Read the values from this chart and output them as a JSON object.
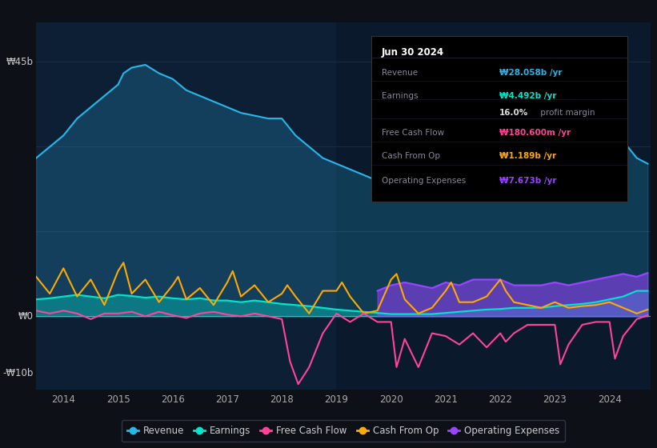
{
  "bg_color": "#0d1117",
  "plot_bg_color": "#0d1f35",
  "ylabel_top": "₩45b",
  "ylabel_zero": "₩0",
  "ylabel_bottom": "-₩10b",
  "xlim_start": 2013.5,
  "xlim_end": 2024.75,
  "ylim_min": -13,
  "ylim_max": 52,
  "xticks": [
    2014,
    2015,
    2016,
    2017,
    2018,
    2019,
    2020,
    2021,
    2022,
    2023,
    2024
  ],
  "colors": {
    "revenue": "#29b5e8",
    "earnings": "#00e5cc",
    "free_cash_flow": "#ff4499",
    "cash_from_op": "#ffaa00",
    "operating_expenses": "#9944ff"
  },
  "legend_labels": [
    "Revenue",
    "Earnings",
    "Free Cash Flow",
    "Cash From Op",
    "Operating Expenses"
  ],
  "revenue_x": [
    2013.5,
    2013.75,
    2014.0,
    2014.25,
    2014.5,
    2014.75,
    2015.0,
    2015.1,
    2015.25,
    2015.5,
    2015.75,
    2016.0,
    2016.25,
    2016.5,
    2016.75,
    2017.0,
    2017.25,
    2017.5,
    2017.75,
    2018.0,
    2018.25,
    2018.5,
    2018.75,
    2019.0,
    2019.25,
    2019.5,
    2019.75,
    2020.0,
    2020.25,
    2020.5,
    2020.75,
    2021.0,
    2021.25,
    2021.5,
    2021.75,
    2022.0,
    2022.25,
    2022.5,
    2022.75,
    2023.0,
    2023.25,
    2023.5,
    2023.75,
    2024.0,
    2024.1,
    2024.25,
    2024.5,
    2024.7
  ],
  "revenue_y": [
    28,
    30,
    32,
    35,
    37,
    39,
    41,
    43,
    44,
    44.5,
    43,
    42,
    40,
    39,
    38,
    37,
    36,
    35.5,
    35,
    35,
    32,
    30,
    28,
    27,
    26,
    25,
    24,
    24,
    24,
    23,
    22,
    22,
    22,
    23,
    23,
    22,
    23,
    24,
    25.5,
    27,
    28,
    30,
    32,
    36,
    35,
    31,
    28,
    27
  ],
  "earnings_x": [
    2013.5,
    2013.75,
    2014.0,
    2014.25,
    2014.5,
    2014.75,
    2015.0,
    2015.25,
    2015.5,
    2015.75,
    2016.0,
    2016.25,
    2016.5,
    2016.75,
    2017.0,
    2017.25,
    2017.5,
    2017.75,
    2018.0,
    2018.25,
    2018.5,
    2018.75,
    2019.0,
    2019.25,
    2019.5,
    2019.75,
    2020.0,
    2020.25,
    2020.5,
    2020.75,
    2021.0,
    2021.25,
    2021.5,
    2021.75,
    2022.0,
    2022.25,
    2022.5,
    2022.75,
    2023.0,
    2023.25,
    2023.5,
    2023.75,
    2024.0,
    2024.25,
    2024.5,
    2024.7
  ],
  "earnings_y": [
    3.0,
    3.2,
    3.5,
    3.8,
    3.5,
    3.2,
    3.8,
    3.6,
    3.3,
    3.5,
    3.2,
    3.0,
    3.2,
    2.8,
    2.8,
    2.5,
    2.8,
    2.5,
    2.2,
    2.0,
    1.8,
    1.5,
    1.2,
    1.0,
    0.8,
    0.6,
    0.4,
    0.4,
    0.4,
    0.4,
    0.6,
    0.8,
    1.0,
    1.2,
    1.3,
    1.5,
    1.5,
    1.5,
    1.8,
    2.0,
    2.2,
    2.5,
    3.0,
    3.5,
    4.5,
    4.5
  ],
  "cash_from_op_x": [
    2013.5,
    2013.75,
    2014.0,
    2014.25,
    2014.5,
    2014.75,
    2015.0,
    2015.1,
    2015.25,
    2015.5,
    2015.75,
    2016.0,
    2016.1,
    2016.25,
    2016.5,
    2016.75,
    2017.0,
    2017.1,
    2017.25,
    2017.5,
    2017.75,
    2018.0,
    2018.1,
    2018.25,
    2018.5,
    2018.75,
    2019.0,
    2019.1,
    2019.25,
    2019.5,
    2019.75,
    2020.0,
    2020.1,
    2020.25,
    2020.5,
    2020.75,
    2021.0,
    2021.1,
    2021.25,
    2021.5,
    2021.75,
    2022.0,
    2022.1,
    2022.25,
    2022.5,
    2022.75,
    2023.0,
    2023.25,
    2023.5,
    2023.75,
    2024.0,
    2024.25,
    2024.5,
    2024.7
  ],
  "cash_from_op_y": [
    7.0,
    4.0,
    8.5,
    3.5,
    6.5,
    2.0,
    8.0,
    9.5,
    4.0,
    6.5,
    2.5,
    5.5,
    7.0,
    3.0,
    5.0,
    2.0,
    6.0,
    8.0,
    3.5,
    5.5,
    2.5,
    4.0,
    5.5,
    3.5,
    0.5,
    4.5,
    4.5,
    6.0,
    3.5,
    0.5,
    1.0,
    6.5,
    7.5,
    3.0,
    0.5,
    1.5,
    4.5,
    6.0,
    2.5,
    2.5,
    3.5,
    6.5,
    4.5,
    2.5,
    2.0,
    1.5,
    2.5,
    1.5,
    1.8,
    2.0,
    2.5,
    1.5,
    0.5,
    1.189
  ],
  "free_cash_flow_x": [
    2013.5,
    2013.75,
    2014.0,
    2014.25,
    2014.5,
    2014.75,
    2015.0,
    2015.25,
    2015.5,
    2015.75,
    2016.0,
    2016.25,
    2016.5,
    2016.75,
    2017.0,
    2017.25,
    2017.5,
    2017.75,
    2018.0,
    2018.15,
    2018.3,
    2018.5,
    2018.75,
    2019.0,
    2019.25,
    2019.5,
    2019.75,
    2020.0,
    2020.1,
    2020.25,
    2020.5,
    2020.75,
    2021.0,
    2021.25,
    2021.5,
    2021.75,
    2022.0,
    2022.1,
    2022.25,
    2022.5,
    2022.75,
    2023.0,
    2023.1,
    2023.25,
    2023.5,
    2023.75,
    2024.0,
    2024.1,
    2024.25,
    2024.5,
    2024.7
  ],
  "free_cash_flow_y": [
    1.0,
    0.5,
    1.0,
    0.5,
    -0.5,
    0.5,
    0.5,
    0.8,
    0.0,
    0.8,
    0.2,
    -0.3,
    0.5,
    0.8,
    0.3,
    0.0,
    0.5,
    0.0,
    -0.5,
    -8.0,
    -12.0,
    -9.0,
    -3.0,
    0.5,
    -1.0,
    0.5,
    -1.0,
    -1.0,
    -9.0,
    -4.0,
    -9.0,
    -3.0,
    -3.5,
    -5.0,
    -3.0,
    -5.5,
    -3.0,
    -4.5,
    -3.0,
    -1.5,
    -1.5,
    -1.5,
    -8.5,
    -5.0,
    -1.5,
    -1.0,
    -1.0,
    -7.5,
    -3.5,
    -0.5,
    0.18
  ],
  "operating_expenses_x": [
    2019.75,
    2020.0,
    2020.25,
    2020.5,
    2020.75,
    2021.0,
    2021.25,
    2021.5,
    2021.75,
    2022.0,
    2022.25,
    2022.5,
    2022.75,
    2023.0,
    2023.25,
    2023.5,
    2023.75,
    2024.0,
    2024.25,
    2024.5,
    2024.7
  ],
  "operating_expenses_y": [
    4.5,
    5.5,
    6.0,
    5.5,
    5.0,
    6.0,
    5.5,
    6.5,
    6.5,
    6.5,
    5.5,
    5.5,
    5.5,
    6.0,
    5.5,
    6.0,
    6.5,
    7.0,
    7.5,
    7.0,
    7.673
  ]
}
